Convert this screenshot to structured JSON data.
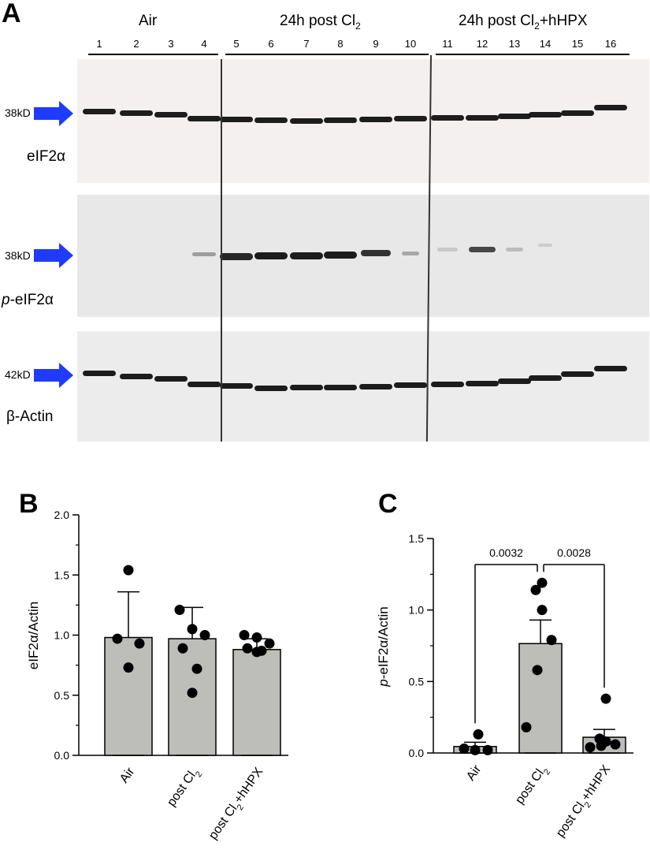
{
  "panelA": {
    "letter": "A",
    "groups": [
      {
        "label": "Air"
      },
      {
        "label": "24h post Cl",
        "sub": "2"
      },
      {
        "label": "24h post Cl",
        "sub": "2",
        "suffix": "+hHPX"
      }
    ],
    "lanes": [
      "1",
      "2",
      "3",
      "4",
      "5",
      "6",
      "7",
      "8",
      "9",
      "10",
      "11",
      "12",
      "13",
      "14",
      "15",
      "16"
    ],
    "blots": [
      {
        "kd": "38kD",
        "name": "eIF2α"
      },
      {
        "kd": "38kD",
        "name_prefix": "p",
        "name": "-eIF2α"
      },
      {
        "kd": "42kD",
        "name": "β-Actin"
      }
    ],
    "arrow_color": "#1f3bff"
  },
  "chart_data": [
    {
      "panel": "B",
      "type": "bar",
      "ylabel": "eIF2α/Actin",
      "ylim": [
        0,
        2.0
      ],
      "yticks": [
        "0.0",
        "0.5",
        "1.0",
        "1.5",
        "2.0"
      ],
      "categories": [
        {
          "label": "Air"
        },
        {
          "label": "post Cl",
          "sub": "2"
        },
        {
          "label": "post Cl",
          "sub": "2",
          "suffix": "+hHPX"
        }
      ],
      "values": [
        0.98,
        0.97,
        0.88
      ],
      "error": [
        0.38,
        0.26,
        0.09
      ],
      "points": [
        [
          1.54,
          0.97,
          0.93,
          0.73
        ],
        [
          1.21,
          1.05,
          1.0,
          0.89,
          0.72,
          0.52
        ],
        [
          1.0,
          0.98,
          0.93,
          0.89,
          0.87,
          0.86
        ]
      ],
      "bar_color": "#bdbdb9"
    },
    {
      "panel": "C",
      "type": "bar",
      "ylabel_prefix": "p",
      "ylabel": "-eIF2α/Actin",
      "ylim": [
        0,
        1.5
      ],
      "yticks": [
        "0.0",
        "0.5",
        "1.0",
        "1.5"
      ],
      "categories": [
        {
          "label": "Air"
        },
        {
          "label": "post Cl",
          "sub": "2"
        },
        {
          "label": "post Cl",
          "sub": "2",
          "suffix": "+hHPX"
        }
      ],
      "values": [
        0.045,
        0.765,
        0.11
      ],
      "error": [
        0.03,
        0.165,
        0.055
      ],
      "points": [
        [
          0.13,
          0.03,
          0.02,
          0.02
        ],
        [
          1.19,
          1.14,
          1.0,
          0.79,
          0.58,
          0.18
        ],
        [
          0.38,
          0.1,
          0.08,
          0.06,
          0.05,
          0.04
        ]
      ],
      "comparisons": [
        {
          "from": 0,
          "to": 1,
          "label": "0.0032"
        },
        {
          "from": 1,
          "to": 2,
          "label": "0.0028"
        }
      ],
      "bar_color": "#bdbdb9"
    }
  ]
}
